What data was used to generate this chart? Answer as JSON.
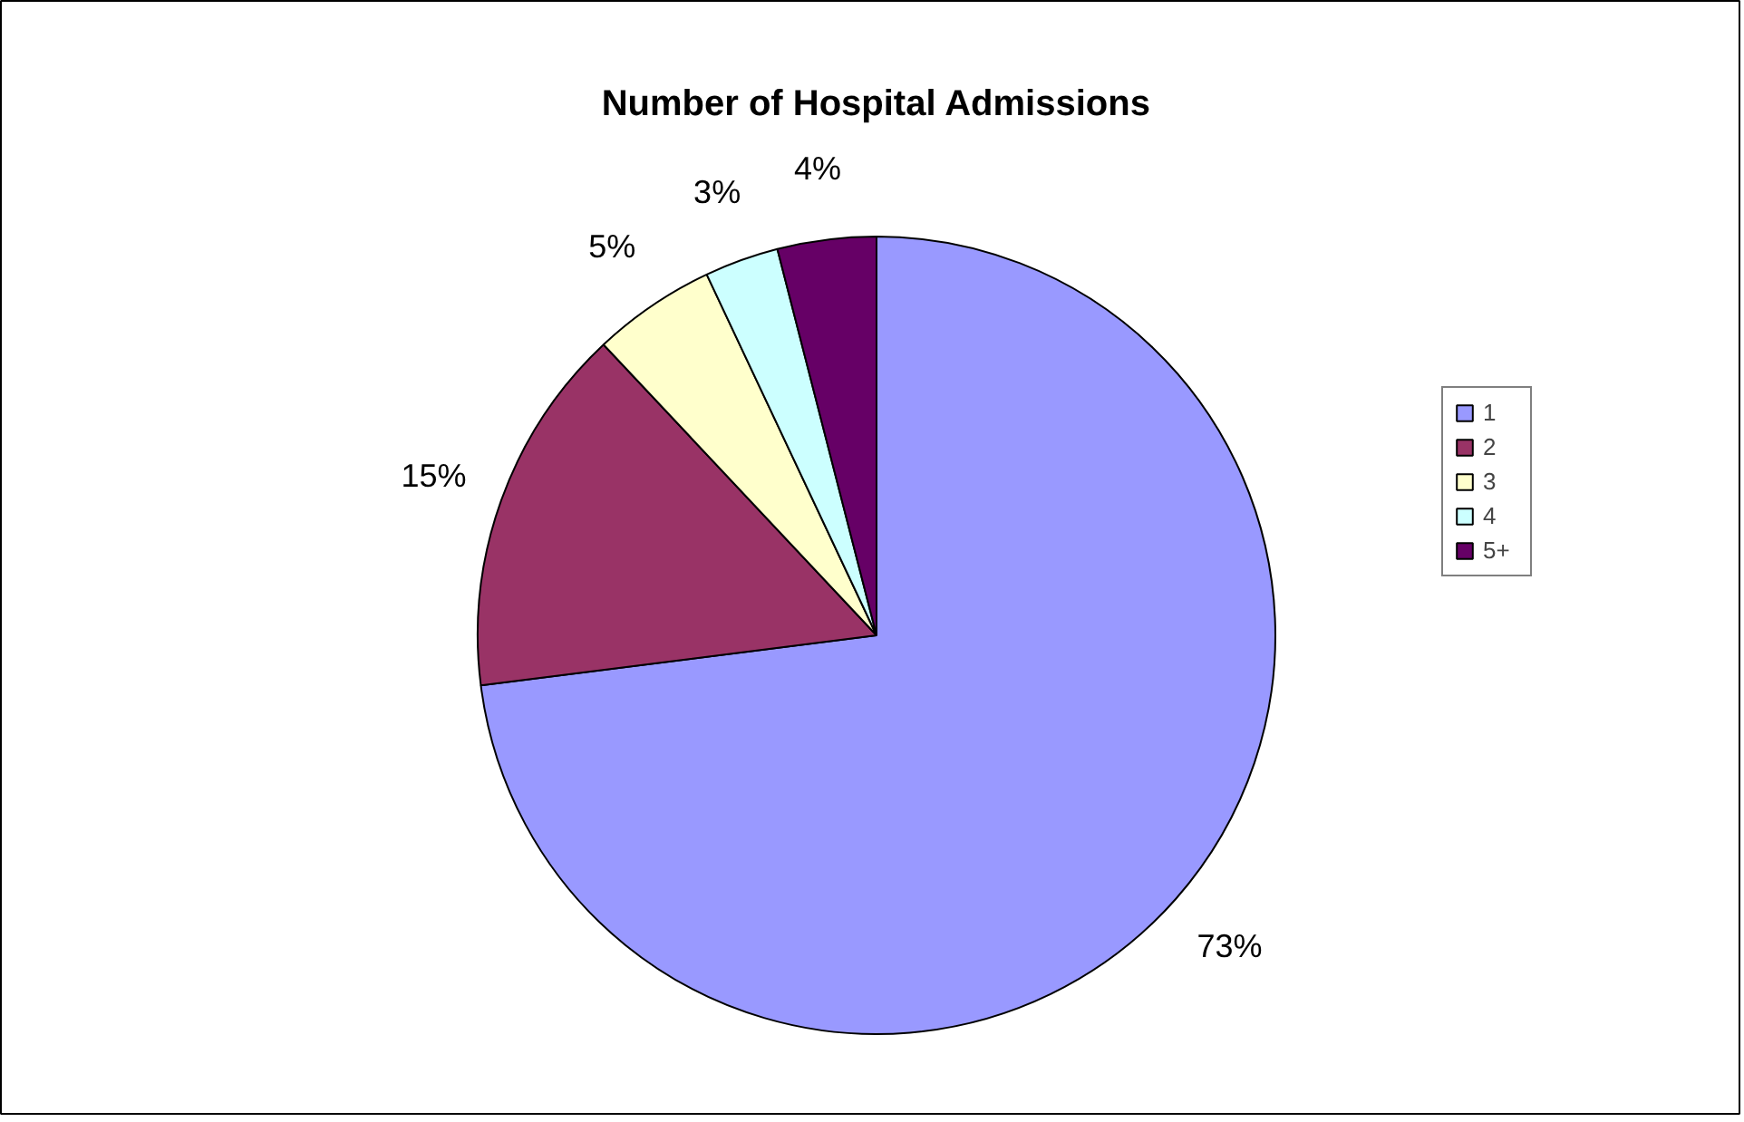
{
  "chart_data": {
    "type": "pie",
    "title": "Number of Hospital Admissions",
    "categories": [
      "1",
      "2",
      "3",
      "4",
      "5+"
    ],
    "values": [
      73,
      15,
      5,
      3,
      4
    ],
    "colors": [
      "#9999ff",
      "#993366",
      "#ffffcc",
      "#ccffff",
      "#660066"
    ],
    "value_labels": [
      "73%",
      "15%",
      "5%",
      "3%",
      "4%"
    ],
    "legend": "right"
  }
}
